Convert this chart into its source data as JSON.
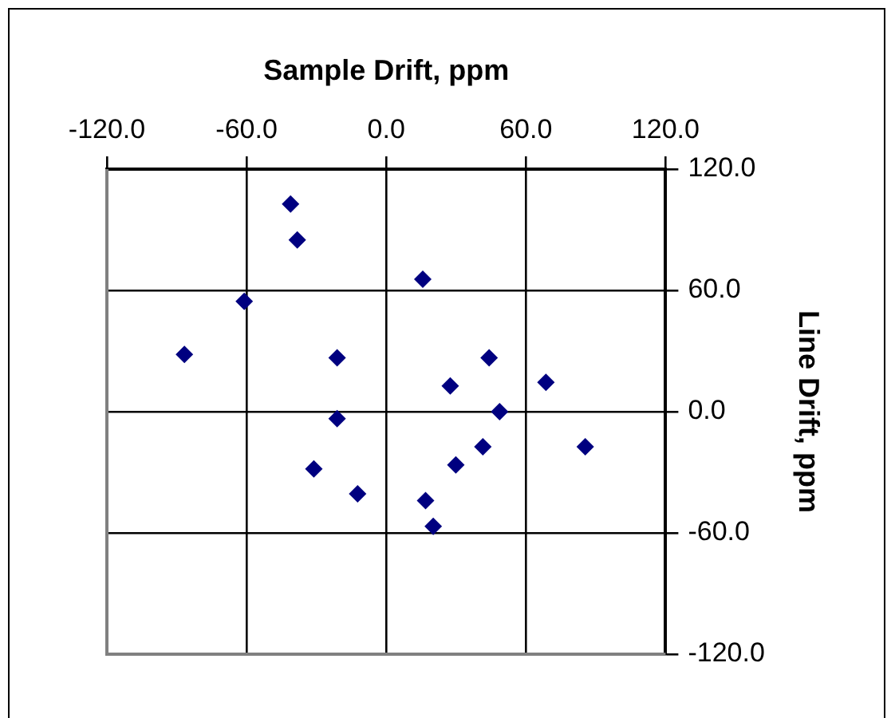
{
  "chart_data": {
    "type": "scatter",
    "xlabel": "Sample Drift, ppm",
    "ylabel": "Line Drift, ppm",
    "x": [
      -41.1,
      -38.2,
      15.7,
      -61,
      -86.7,
      -21.1,
      44.2,
      27.5,
      68.6,
      48.7,
      -21.1,
      85.5,
      41.5,
      29.9,
      -31.1,
      -12.3,
      16.9,
      20.2
    ],
    "series": [
      {
        "color": "#000080",
        "values": [
          102.7,
          85,
          65.5,
          54.6,
          28.3,
          26.6,
          26.6,
          12.7,
          14.5,
          0,
          -3.5,
          -17.4,
          -17.4,
          -26.3,
          -28.3,
          -40.7,
          -44,
          -56.7
        ]
      }
    ],
    "xlim": [
      -120,
      120
    ],
    "xticks": [
      {
        "value": -120,
        "label": "-120.0"
      },
      {
        "value": -60,
        "label": "-60.0"
      },
      {
        "value": 0,
        "label": "0.0"
      },
      {
        "value": 60,
        "label": "60.0"
      },
      {
        "value": 120,
        "label": "120.0"
      }
    ],
    "ylim": [
      -120,
      120
    ],
    "yticks": [
      {
        "value": -120,
        "label": "-120.0"
      },
      {
        "value": -60,
        "label": "-60.0"
      },
      {
        "value": 0,
        "label": "0.0"
      },
      {
        "value": 60,
        "label": "60.0"
      },
      {
        "value": 120,
        "label": "120.0"
      }
    ],
    "grid": true,
    "legend": false,
    "marker": "diamond"
  }
}
